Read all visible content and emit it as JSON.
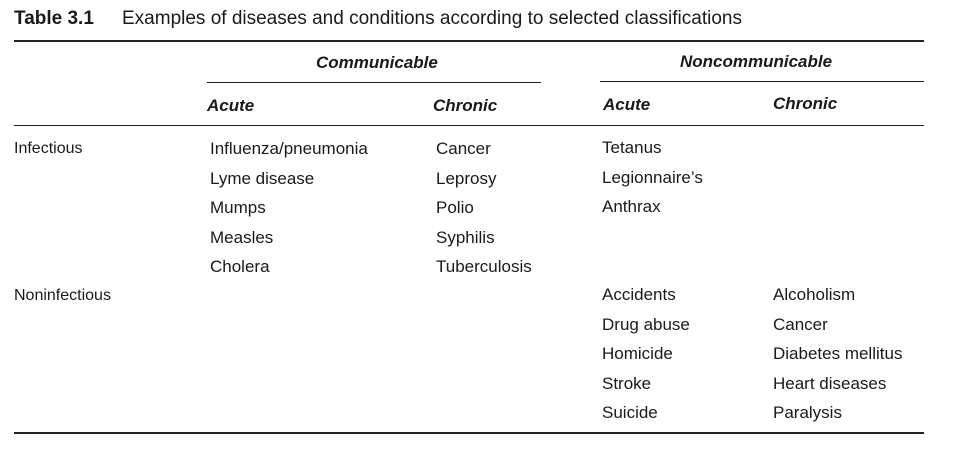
{
  "table": {
    "label": "Table 3.1",
    "caption": "Examples of diseases and conditions according to selected classifications",
    "groups": {
      "communicable": "Communicable",
      "noncommunicable": "Noncommunicable"
    },
    "columns": {
      "comm_acute": "Acute",
      "comm_chronic": "Chronic",
      "noncomm_acute": "Acute",
      "noncomm_chronic": "Chronic"
    },
    "rows": {
      "infectious": {
        "label": "Infectious",
        "comm_acute": [
          "Influenza/pneumonia",
          "Lyme disease",
          "Mumps",
          "Measles",
          "Cholera"
        ],
        "comm_chronic": [
          "Cancer",
          "Leprosy",
          "Polio",
          "Syphilis",
          "Tuberculosis"
        ],
        "noncomm_acute": [
          "Tetanus",
          "Legionnaire’s",
          "Anthrax"
        ],
        "noncomm_chronic": []
      },
      "noninfectious": {
        "label": "Noninfectious",
        "comm_acute": [],
        "comm_chronic": [],
        "noncomm_acute": [
          "Accidents",
          "Drug abuse",
          "Homicide",
          "Stroke",
          "Suicide"
        ],
        "noncomm_chronic": [
          "Alcoholism",
          "Cancer",
          "Diabetes mellitus",
          "Heart diseases",
          "Paralysis"
        ]
      }
    }
  }
}
